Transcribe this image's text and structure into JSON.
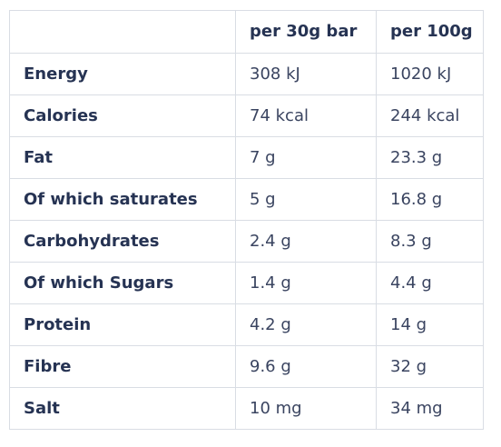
{
  "table": {
    "columns": [
      "",
      "per 30g bar",
      "per 100g"
    ],
    "rows": [
      {
        "label": "Energy",
        "per_bar": "308 kJ",
        "per_100g": "1020 kJ"
      },
      {
        "label": "Calories",
        "per_bar": "74 kcal",
        "per_100g": "244 kcal"
      },
      {
        "label": "Fat",
        "per_bar": "7 g",
        "per_100g": "23.3 g"
      },
      {
        "label": "Of which saturates",
        "per_bar": "5 g",
        "per_100g": "16.8 g"
      },
      {
        "label": "Carbohydrates",
        "per_bar": "2.4 g",
        "per_100g": "8.3 g"
      },
      {
        "label": "Of which Sugars",
        "per_bar": "1.4 g",
        "per_100g": "4.4 g"
      },
      {
        "label": "Protein",
        "per_bar": "4.2 g",
        "per_100g": "14 g"
      },
      {
        "label": "Fibre",
        "per_bar": "9.6 g",
        "per_100g": "32 g"
      },
      {
        "label": "Salt",
        "per_bar": "10 mg",
        "per_100g": "34 mg"
      }
    ]
  },
  "colors": {
    "border": "#d9dde4",
    "text": "#263353"
  }
}
